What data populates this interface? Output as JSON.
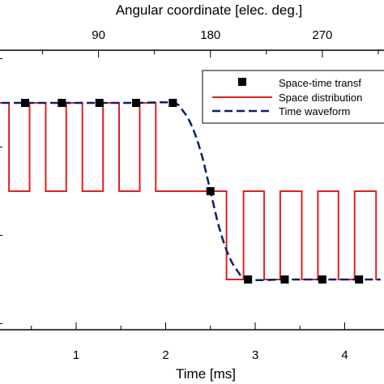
{
  "chart_data": {
    "type": "line",
    "top_axis": {
      "label": "Angular coordinate [elec. deg.]",
      "ticks": [
        90,
        180,
        270
      ]
    },
    "bottom_axis": {
      "label": "Time [ms]",
      "ticks": [
        1,
        2,
        3,
        4
      ]
    },
    "xlim_ms": [
      -0.85,
      4.4
    ],
    "ylim": [
      -1.85,
      1.85
    ],
    "legend": {
      "placement": "top-right",
      "entries": [
        {
          "label": "Space-time transf",
          "style": "square-marker",
          "color": "#000000"
        },
        {
          "label": "Space distribution",
          "style": "solid",
          "color": "#e02020"
        },
        {
          "label": "Time waveform",
          "style": "dashed",
          "color": "#0b1f6e"
        }
      ]
    },
    "series": [
      {
        "name": "Space-time transf",
        "x_ms": [
          0.43,
          0.84,
          1.26,
          1.67,
          2.08,
          2.5,
          2.92,
          3.33,
          3.75,
          4.16
        ],
        "y": [
          1,
          1,
          1,
          1,
          1,
          0,
          -1,
          -1,
          -1,
          -1
        ]
      },
      {
        "name": "Space distribution",
        "x_ms": [
          -0.85,
          -0.1,
          -0.1,
          0.25,
          0.25,
          0.48,
          0.48,
          0.66,
          0.66,
          0.89,
          0.89,
          1.07,
          1.07,
          1.3,
          1.3,
          1.48,
          1.48,
          1.71,
          1.71,
          1.89,
          1.89,
          2.12,
          2.12,
          2.38,
          2.38,
          2.68,
          2.68,
          2.87,
          2.87,
          3.1,
          3.1,
          3.28,
          3.28,
          3.52,
          3.52,
          3.7,
          3.7,
          3.93,
          3.93,
          4.11,
          4.11,
          4.35,
          4.35,
          4.4
        ],
        "y": [
          0,
          0,
          1,
          1,
          0,
          0,
          1,
          1,
          0,
          0,
          1,
          1,
          0,
          0,
          1,
          1,
          0,
          0,
          1,
          1,
          0,
          0,
          0,
          0,
          0,
          0,
          -1,
          -1,
          0,
          0,
          -1,
          -1,
          0,
          0,
          -1,
          -1,
          0,
          0,
          -1,
          -1,
          0,
          0,
          -1,
          -1
        ]
      },
      {
        "name": "Time waveform",
        "x_ms": [
          -0.85,
          -0.7,
          -0.55,
          -0.4,
          -0.25,
          -0.1,
          0.05,
          0.2,
          0.43,
          0.84,
          1.26,
          1.67,
          2.08,
          2.2,
          2.3,
          2.4,
          2.5,
          2.6,
          2.7,
          2.8,
          2.92,
          3.33,
          3.75,
          4.16,
          4.4
        ],
        "y": [
          0.4,
          0.55,
          0.7,
          0.83,
          0.92,
          0.97,
          0.995,
          1,
          1,
          1,
          1,
          1,
          1,
          0.9,
          0.72,
          0.42,
          0,
          -0.42,
          -0.72,
          -0.9,
          -1,
          -1,
          -1,
          -1,
          -1
        ]
      }
    ]
  }
}
